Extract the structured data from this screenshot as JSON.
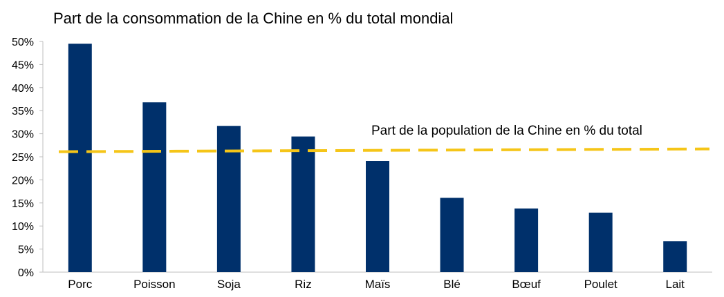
{
  "chart_data": {
    "type": "bar",
    "title": "Part de la consommation de la Chine en % du total mondial",
    "xlabel": "",
    "ylabel": "",
    "categories": [
      "Porc",
      "Poisson",
      "Soja",
      "Riz",
      "Maïs",
      "Blé",
      "Bœuf",
      "Poulet",
      "Lait"
    ],
    "values": [
      49.5,
      36.8,
      31.7,
      29.4,
      24.1,
      16.1,
      13.8,
      12.9,
      6.7
    ],
    "ylim": [
      0,
      50
    ],
    "yticks": [
      "0%",
      "5%",
      "10%",
      "15%",
      "20%",
      "25%",
      "30%",
      "35%",
      "40%",
      "45%",
      "50%"
    ],
    "grid": false,
    "legend": "none",
    "bar_color": "#00306B",
    "reference_line": {
      "label": "Part de la population de la Chine en % du total",
      "value_start": 26.1,
      "value_end": 26.7,
      "style": "dashed",
      "color": "#F5C518"
    }
  }
}
